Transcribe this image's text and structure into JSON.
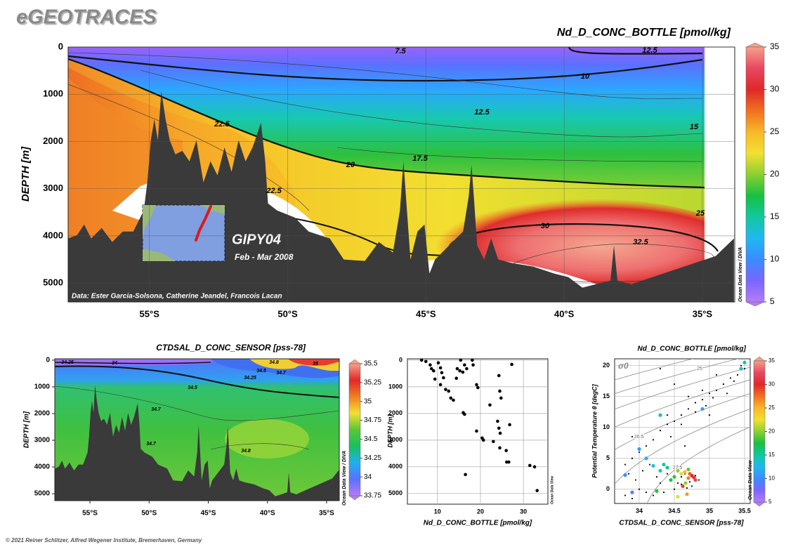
{
  "header": {
    "title": "eGEOTRACES"
  },
  "footer": {
    "copyright": "© 2021 Reiner Schlitzer, Alfred Wegener Institute, Bremerhaven, Germany"
  },
  "chart_data": [
    {
      "type": "section",
      "title": "Nd_D_CONC_BOTTLE [pmol/kg]",
      "ylabel": "DEPTH [m]",
      "xlim": [
        -57.94,
        -33.83
      ],
      "xticks": [
        {
          "value": -55,
          "label": "55°S"
        },
        {
          "value": -50,
          "label": "50°S"
        },
        {
          "value": -45,
          "label": "45°S"
        },
        {
          "value": -40,
          "label": "40°S"
        },
        {
          "value": -35,
          "label": "35°S"
        }
      ],
      "ylim": [
        5400,
        0
      ],
      "yticks": [
        0,
        1000,
        2000,
        3000,
        4000,
        5000
      ],
      "grid": true,
      "colorbar": {
        "zlim": [
          5,
          35
        ],
        "zticks": [
          5,
          10,
          15,
          20,
          25,
          30,
          35
        ],
        "colors": [
          "#b57cf7",
          "#7a66ff",
          "#3a8cff",
          "#20b8f0",
          "#10c8a0",
          "#18c040",
          "#8cd030",
          "#f2e030",
          "#f8b828",
          "#f07020",
          "#e02828",
          "#e84860",
          "#f4a08a"
        ],
        "label": "Ocean Data View / DIVA"
      },
      "contour_labels": [
        7.5,
        12.5,
        10,
        12.5,
        15,
        22.5,
        20,
        17.5,
        22.5,
        25,
        30,
        32.5
      ],
      "annotations": {
        "cruise": "GIPY04",
        "period": "Feb - Mar 2008",
        "credit": "Data: Ester Garcia-Solsona, Catherine Jeandel, Francois Lacan"
      }
    },
    {
      "type": "section",
      "title": "CTDSAL_D_CONC_SENSOR [pss-78]",
      "ylabel": "DEPTH [m]",
      "xlim": [
        -57.97,
        -33.93
      ],
      "xticks": [
        {
          "value": -55,
          "label": "55°S"
        },
        {
          "value": -50,
          "label": "50°S"
        },
        {
          "value": -45,
          "label": "45°S"
        },
        {
          "value": -40,
          "label": "40°S"
        },
        {
          "value": -35,
          "label": "35°S"
        }
      ],
      "ylim": [
        5260,
        -50
      ],
      "yticks": [
        0,
        1000,
        2000,
        3000,
        4000,
        5000
      ],
      "grid": false,
      "colorbar": {
        "zlim": [
          33.75,
          35.5
        ],
        "zticks": [
          33.75,
          34,
          34.25,
          34.5,
          34.75,
          35,
          35.25,
          35.5
        ],
        "colors": [
          "#b57cf7",
          "#5a70ff",
          "#20b0f0",
          "#18c060",
          "#58c838",
          "#f2e030",
          "#f08020",
          "#e02828",
          "#f4a08a"
        ],
        "label": "Ocean Data View / DIVA"
      },
      "contour_labels": [
        34.25,
        34,
        34.5,
        34.7,
        34.7,
        34.8,
        34.8,
        34.5,
        34.7,
        35,
        34.25
      ]
    },
    {
      "type": "scatter",
      "xlabel": "Nd_D_CONC_BOTTLE [pmol/kg]",
      "ylabel": "DEPTH [m]",
      "xlim": [
        3,
        35.7
      ],
      "xticks": [
        10,
        20,
        30
      ],
      "ylim": [
        5400,
        -50
      ],
      "yticks": [
        0,
        1000,
        2000,
        3000,
        4000,
        5000
      ],
      "grid": true,
      "color": "#000000",
      "credit": "Ocean Data View",
      "x": [
        6.3,
        7.3,
        8.3,
        8.6,
        9.1,
        9.4,
        10.2,
        10.7,
        11,
        11.4,
        10.7,
        11.9,
        12.6,
        13.1,
        13.7,
        14.4,
        14.6,
        15.2,
        15.9,
        15.4,
        16.3,
        16.8,
        18.1,
        18.3,
        19.1,
        19.4,
        16,
        16.3,
        22.2,
        24.5,
        24.8,
        19.1,
        20.4,
        20.7,
        24,
        24.3,
        24.6,
        26.8,
        23,
        24.5,
        26,
        26.1,
        26.6,
        16.5,
        31.5,
        32.6,
        33.2,
        27.3,
        24.3
      ],
      "y": [
        0,
        50,
        180,
        320,
        400,
        710,
        100,
        290,
        470,
        660,
        920,
        1100,
        1160,
        1420,
        1500,
        680,
        320,
        400,
        450,
        0,
        180,
        320,
        0,
        180,
        920,
        1030,
        1970,
        2030,
        1680,
        1160,
        1420,
        2660,
        2920,
        3000,
        2290,
        2550,
        2740,
        2420,
        3050,
        3290,
        3390,
        3820,
        3820,
        4290,
        3950,
        4000,
        4890,
        160,
        580
      ]
    },
    {
      "type": "ts-scatter",
      "title": "Nd_D_CONC_BOTTLE [pmol/kg]",
      "xlabel": "CTDSAL_D_CONC_SENSOR [pss-78]",
      "ylabel": "Potential Temperature θ [degC]",
      "xlim": [
        33.65,
        35.58
      ],
      "xticks": [
        34,
        34.5,
        35,
        35.5
      ],
      "ylim": [
        -2.3,
        21.1
      ],
      "yticks": [
        0,
        5,
        10,
        15,
        20
      ],
      "grid": true,
      "sigma_label": "σ0",
      "isopycnal_labels": [
        24.5,
        25,
        25.5,
        26,
        26.5,
        27,
        27.5
      ],
      "colorbar": {
        "zlim": [
          5,
          35
        ],
        "zticks": [
          5,
          10,
          15,
          20,
          25,
          30,
          35
        ],
        "colors": [
          "#b57cf7",
          "#7a66ff",
          "#3a8cff",
          "#20b8f0",
          "#10c8a0",
          "#18c040",
          "#8cd030",
          "#f2e030",
          "#f8b828",
          "#f07020",
          "#e02828",
          "#e84860",
          "#f4a08a"
        ],
        "label": "Ocean Data View"
      },
      "series": [
        {
          "color": "#000000",
          "x": [
            34.3,
            34.4,
            34.5,
            34.6,
            34.7,
            34.8,
            34.9,
            35.0,
            35.1,
            35.2,
            35.3,
            35.4,
            35.5,
            34.8,
            34.95,
            35.05,
            35.25,
            35.35,
            34.6,
            34.45,
            34.2,
            34.1,
            34.0,
            33.9,
            33.8,
            33.85,
            33.95,
            34.05,
            34.15,
            34.25,
            34.3,
            34.4,
            34.45,
            34.55,
            34.6,
            34.65,
            34.7,
            34.72,
            34.75,
            34.68,
            34.6,
            33.8,
            33.9,
            34.0,
            34.1,
            34.2,
            34.35,
            34.5,
            34.8,
            34.85,
            34.4,
            34.9,
            35.1,
            35.45,
            34.7,
            35.0,
            33.9,
            34.3,
            34.5,
            34.65
          ],
          "y": [
            9.5,
            10.5,
            11,
            12,
            13,
            14,
            14.5,
            15.5,
            16,
            17,
            18,
            18.5,
            19.5,
            12.5,
            13.5,
            14.8,
            15.5,
            17.5,
            10.5,
            8.5,
            8,
            7,
            6,
            5,
            4,
            2.5,
            1.5,
            3,
            4,
            2,
            1,
            2.5,
            1.5,
            1,
            2,
            2.5,
            1.8,
            1.2,
            0.5,
            0.2,
            0.8,
            -1,
            -1.5,
            0,
            -0.5,
            -1,
            -0.5,
            0,
            2.2,
            1.5,
            12,
            16,
            18.5,
            20,
            15,
            12,
            8.5,
            19.5,
            17,
            7
          ]
        },
        {
          "x": [
            34.75,
            34.78,
            34.8,
            34.72,
            34.7,
            34.65,
            34.6,
            34.55,
            34.5,
            34.45,
            34.4,
            34.35,
            34.3,
            34.2,
            34.1,
            34.0,
            33.8,
            33.9,
            34.3,
            34.9,
            35.45,
            35.5,
            34.25,
            34.55,
            34.68,
            34.62,
            34.66,
            34.7
          ],
          "y": [
            2.2,
            1.9,
            1.5,
            2.5,
            1.8,
            2.8,
            2.5,
            3,
            2,
            1.5,
            3.5,
            4,
            3,
            3.8,
            5,
            6.5,
            2.3,
            -0.5,
            12,
            13,
            19.5,
            20.5,
            -0.3,
            -1.2,
            -0.8,
            0.5,
            1,
            3.2
          ],
          "z": [
            30,
            31,
            32,
            28,
            27,
            25,
            22,
            20,
            18,
            17,
            16,
            15,
            14,
            13,
            12,
            11,
            10,
            9,
            12,
            11,
            14,
            15,
            18,
            22,
            26,
            29,
            20,
            19
          ]
        }
      ]
    }
  ]
}
